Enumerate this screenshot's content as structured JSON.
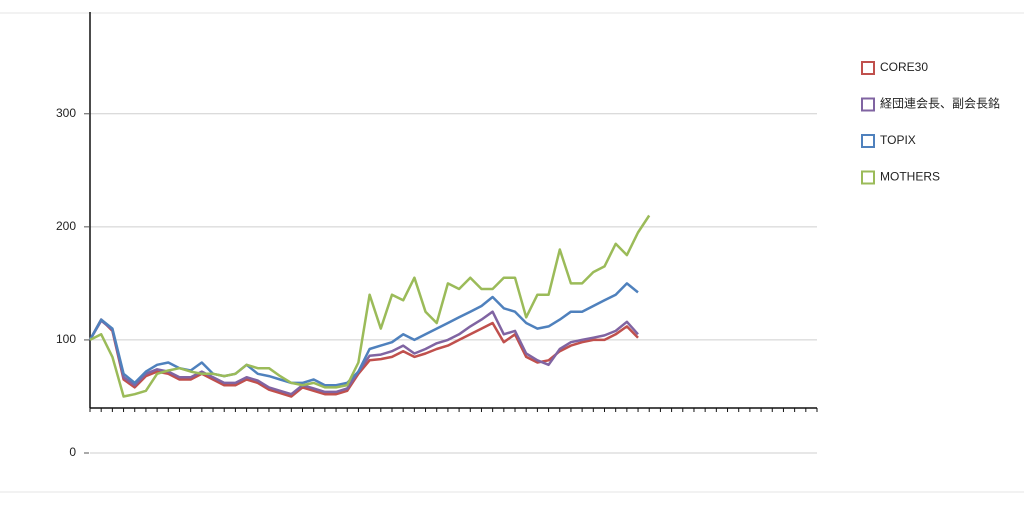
{
  "chart_data": {
    "type": "line",
    "categories": [
      null,
      null,
      null,
      null,
      null,
      null,
      null,
      null,
      null,
      null,
      null,
      null,
      null,
      null,
      null,
      null,
      null,
      null,
      null,
      null,
      null,
      null,
      null,
      null,
      null,
      null,
      null,
      null,
      null,
      null,
      null,
      null,
      null,
      null,
      null,
      null,
      null,
      null,
      null,
      null,
      null,
      null,
      null,
      null,
      null,
      null,
      null,
      null,
      null,
      null,
      null,
      null,
      null,
      null,
      null,
      null,
      null,
      null,
      null,
      null,
      null,
      null,
      null,
      null,
      null,
      null
    ],
    "series": [
      {
        "name": "CORE30",
        "color": "#c0504d",
        "values": [
          100,
          118,
          108,
          65,
          58,
          68,
          72,
          70,
          65,
          65,
          70,
          65,
          60,
          60,
          65,
          62,
          56,
          53,
          50,
          58,
          55,
          52,
          52,
          55,
          70,
          82,
          83,
          85,
          90,
          85,
          88,
          92,
          95,
          100,
          105,
          110,
          115,
          98,
          105,
          85,
          80,
          82,
          90,
          95,
          98,
          100,
          100,
          105,
          112,
          102,
          null,
          null,
          null,
          null,
          null,
          null,
          null,
          null,
          null,
          null,
          null,
          null,
          null,
          null,
          null,
          null
        ]
      },
      {
        "name": "経団連会長、副会長銘",
        "color": "#8064a2",
        "values": [
          100,
          117,
          109,
          67,
          60,
          70,
          74,
          72,
          67,
          67,
          72,
          67,
          62,
          62,
          67,
          64,
          58,
          55,
          52,
          60,
          57,
          54,
          54,
          57,
          72,
          86,
          87,
          90,
          95,
          88,
          92,
          97,
          100,
          105,
          112,
          118,
          125,
          105,
          108,
          88,
          82,
          78,
          92,
          98,
          100,
          102,
          104,
          108,
          116,
          105,
          null,
          null,
          null,
          null,
          null,
          null,
          null,
          null,
          null,
          null,
          null,
          null,
          null,
          null,
          null,
          null
        ]
      },
      {
        "name": "TOPIX",
        "color": "#4f81bd",
        "values": [
          100,
          118,
          110,
          70,
          62,
          72,
          78,
          80,
          75,
          73,
          80,
          70,
          68,
          70,
          78,
          70,
          68,
          65,
          62,
          62,
          65,
          60,
          60,
          62,
          72,
          92,
          95,
          98,
          105,
          100,
          105,
          110,
          115,
          120,
          125,
          130,
          138,
          128,
          125,
          115,
          110,
          112,
          118,
          125,
          125,
          130,
          135,
          140,
          150,
          142,
          null,
          null,
          null,
          null,
          null,
          null,
          null,
          null,
          null,
          null,
          null,
          null,
          null,
          null,
          null,
          null
        ]
      },
      {
        "name": "MOTHERS",
        "color": "#9bbb59",
        "values": [
          100,
          105,
          85,
          50,
          52,
          55,
          70,
          73,
          75,
          72,
          70,
          70,
          68,
          70,
          78,
          75,
          75,
          68,
          62,
          60,
          62,
          58,
          58,
          60,
          80,
          140,
          110,
          140,
          135,
          155,
          125,
          115,
          150,
          145,
          155,
          145,
          145,
          155,
          155,
          120,
          140,
          140,
          180,
          150,
          150,
          160,
          165,
          185,
          175,
          195,
          210,
          null,
          null,
          null,
          null,
          null,
          null,
          null,
          null,
          null,
          null,
          null,
          null,
          null,
          null,
          null
        ]
      }
    ],
    "ylim": [
      0,
      390
    ],
    "yticks": [
      0,
      100,
      200,
      300
    ],
    "grid": true,
    "legend": "right"
  }
}
